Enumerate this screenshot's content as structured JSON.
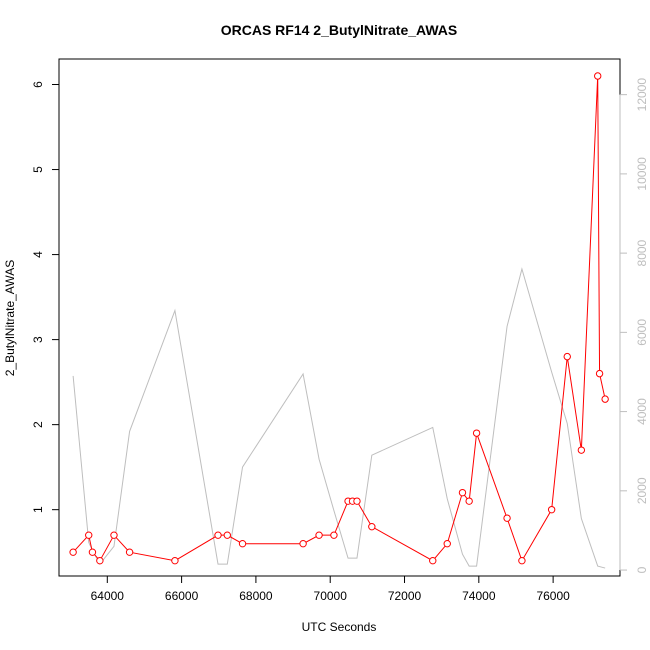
{
  "chart_data": {
    "type": "line",
    "title": "ORCAS RF14 2_ButylNitrate_AWAS",
    "xlabel": "UTC Seconds",
    "ylabel": "2_ButylNitrate_AWAS",
    "xlim": [
      62700,
      77800
    ],
    "ylim": [
      0.22,
      6.3
    ],
    "ylim_right": [
      -150,
      12900
    ],
    "xticks": [
      64000,
      66000,
      68000,
      70000,
      72000,
      74000,
      76000
    ],
    "yticks": [
      1,
      2,
      3,
      4,
      5,
      6
    ],
    "yticks_right": [
      0,
      2000,
      4000,
      6000,
      8000,
      10000,
      12000
    ],
    "colors": {
      "primary": "#ff0000",
      "secondary": "#bebebe"
    },
    "series": [
      {
        "axis": "left",
        "style": "line-points",
        "points": [
          [
            63080,
            0.5
          ],
          [
            63500,
            0.7
          ],
          [
            63600,
            0.5
          ],
          [
            63800,
            0.4
          ],
          [
            64180,
            0.7
          ],
          [
            64600,
            0.5
          ],
          [
            65820,
            0.4
          ],
          [
            66980,
            0.7
          ],
          [
            67230,
            0.7
          ],
          [
            67640,
            0.6
          ],
          [
            69270,
            0.6
          ],
          [
            69700,
            0.7
          ],
          [
            70100,
            0.7
          ],
          [
            70480,
            1.1
          ],
          [
            70600,
            1.1
          ],
          [
            70720,
            1.1
          ],
          [
            71120,
            0.8
          ],
          [
            72760,
            0.4
          ],
          [
            73150,
            0.6
          ],
          [
            73560,
            1.2
          ],
          [
            73740,
            1.1
          ],
          [
            73940,
            1.9
          ],
          [
            74760,
            0.9
          ],
          [
            75160,
            0.4
          ],
          [
            75960,
            1.0
          ],
          [
            76380,
            2.8
          ],
          [
            76760,
            1.7
          ],
          [
            77200,
            6.1
          ],
          [
            77250,
            2.6
          ],
          [
            77400,
            2.3
          ]
        ]
      },
      {
        "axis": "right",
        "style": "line",
        "points": [
          [
            63080,
            4900
          ],
          [
            63500,
            700
          ],
          [
            63600,
            500
          ],
          [
            63800,
            150
          ],
          [
            64180,
            600
          ],
          [
            64600,
            3500
          ],
          [
            65820,
            6550
          ],
          [
            66980,
            150
          ],
          [
            67230,
            150
          ],
          [
            67640,
            2600
          ],
          [
            69270,
            4950
          ],
          [
            69700,
            2800
          ],
          [
            70100,
            1500
          ],
          [
            70480,
            300
          ],
          [
            70720,
            300
          ],
          [
            71120,
            2900
          ],
          [
            72760,
            3600
          ],
          [
            73150,
            1800
          ],
          [
            73560,
            400
          ],
          [
            73740,
            100
          ],
          [
            73940,
            100
          ],
          [
            74760,
            6150
          ],
          [
            75160,
            7600
          ],
          [
            75960,
            5000
          ],
          [
            76380,
            3700
          ],
          [
            76760,
            1300
          ],
          [
            77200,
            100
          ],
          [
            77400,
            50
          ]
        ]
      }
    ]
  }
}
